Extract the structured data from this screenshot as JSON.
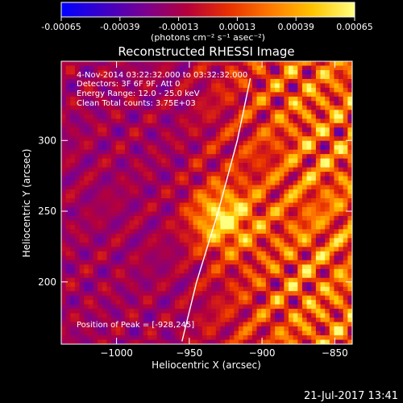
{
  "colorbar": {
    "tick_labels": [
      "-0.00065",
      "-0.00039",
      "-0.00013",
      "0.00013",
      "0.00039",
      "0.00065"
    ],
    "unit_label": "(photons cm⁻² s⁻¹ asec⁻²)",
    "colors": [
      "#0000ff",
      "#3b00c8",
      "#7a0090",
      "#b4003c",
      "#e83000",
      "#ff7a00",
      "#ffc400",
      "#ffff80"
    ]
  },
  "chart_data": {
    "type": "heatmap",
    "title": "Reconstructed RHESSI Image",
    "xlabel": "Heliocentric X (arcsec)",
    "ylabel": "Heliocentric Y (arcsec)",
    "xlim": [
      -1038,
      -838
    ],
    "ylim": [
      156,
      356
    ],
    "x_ticks": [
      -1000,
      -950,
      -900,
      -850
    ],
    "y_ticks": [
      200,
      250,
      300
    ],
    "x_tick_labels": [
      "−1000",
      "−950",
      "−900",
      "−850"
    ],
    "y_tick_labels": [
      "200",
      "250",
      "300"
    ],
    "peak": {
      "x": -928,
      "y": 245
    },
    "limb_line": [
      [
        -955,
        158
      ],
      [
        -945,
        200
      ],
      [
        -930,
        250
      ],
      [
        -917,
        300
      ],
      [
        -908,
        344
      ]
    ],
    "annotations": [
      "4-Nov-2014 03:22:32.000 to 03:32:32.000",
      "Detectors: 3F 6F 9F, Att 0",
      "Energy Range: 12.0 - 25.0 keV",
      "Clean     Total counts: 3.75E+03",
      "Position of Peak = [-928,245]"
    ]
  },
  "footer": {
    "timestamp": "21-Jul-2017 13:41"
  }
}
